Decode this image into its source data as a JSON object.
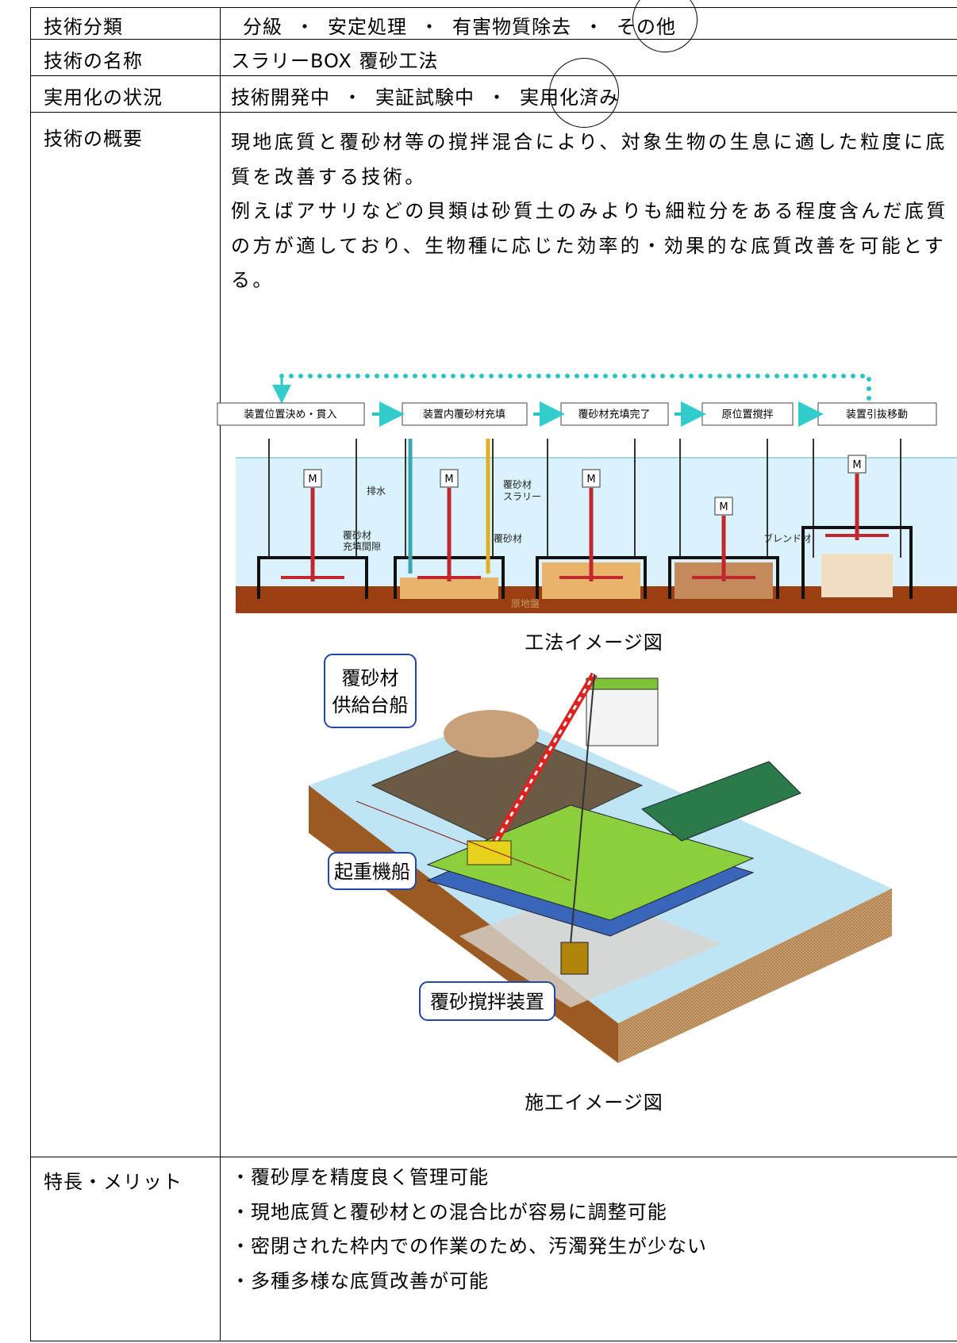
{
  "table": {
    "rows": [
      {
        "label": "技術分類",
        "options": [
          "分級",
          "安定処理",
          "有害物質除去",
          "その他"
        ],
        "separator": "・"
      },
      {
        "label": "技術の名称",
        "text": "スラリーBOX 覆砂工法"
      },
      {
        "label": "実用化の状況",
        "options": [
          "技術開発中",
          "実証試験中",
          "実用化済み"
        ],
        "separator": "・"
      },
      {
        "label": "技術の概要",
        "paragraphs": [
          "現地底質と覆砂材等の撹拌混合により、対象生物の生息に適した粒度に底質を改善する技術。",
          "例えばアサリなどの貝類は砂質土のみよりも細粒分をある程度含んだ底質の方が適しており、生物種に応じた効率的・効果的な底質改善を可能とする。"
        ],
        "figures": [
          {
            "steps": [
              "装置位置決め・貫入",
              "装置内覆砂材充填",
              "覆砂材充填完了",
              "原位置撹拌",
              "装置引抜移動"
            ],
            "motor_label": "M",
            "drain_label": "排水",
            "slurry_label": [
              "覆砂材",
              "スラリー"
            ],
            "gap_label": [
              "覆砂材",
              "充填間隙"
            ],
            "sand_label": "覆砂材",
            "blend_label": "ブレンド材",
            "ground_label": "原地盤",
            "caption": "工法イメージ図"
          },
          {
            "callouts": [
              [
                "覆砂材",
                "供給台船"
              ],
              [
                "起重機船"
              ],
              [
                "覆砂撹拌装置"
              ]
            ],
            "caption": "施工イメージ図"
          }
        ]
      },
      {
        "label": "特長・メリット",
        "bullets": [
          "・覆砂厚を精度良く管理可能",
          "・現地底質と覆砂材との混合比が容易に調整可能",
          "・密閉された枠内での作業のため、汚濁発生が少ない",
          "・多種多様な底質改善が可能"
        ]
      }
    ]
  }
}
